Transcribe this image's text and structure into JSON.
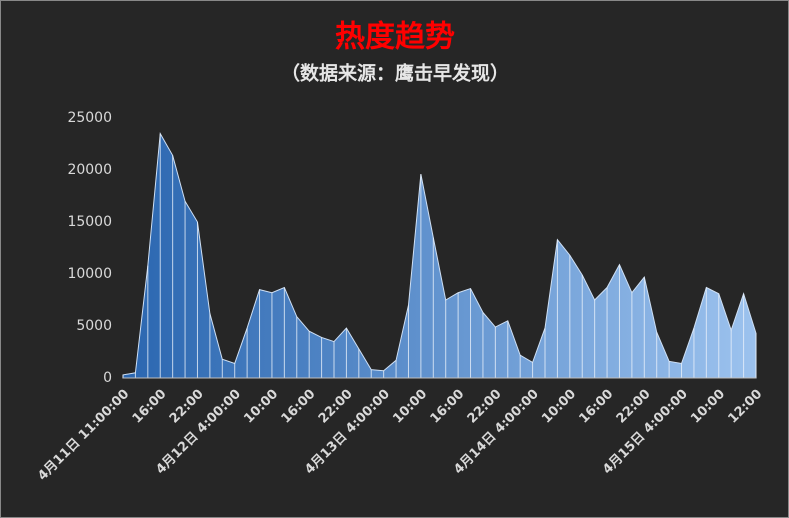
{
  "chart_data": {
    "type": "area",
    "title": "热度趋势",
    "subtitle": "（数据来源：鹰击早发现）",
    "categories": [
      "4月11日 11:00:00",
      null,
      null,
      "16:00",
      null,
      null,
      "22:00",
      null,
      null,
      "4月12日 4:00:00",
      null,
      null,
      "10:00",
      null,
      null,
      "16:00",
      null,
      null,
      "22:00",
      null,
      null,
      "4月13日 4:00:00",
      null,
      null,
      "10:00",
      null,
      null,
      "16:00",
      null,
      null,
      "22:00",
      null,
      null,
      "4月14日 4:00:00",
      null,
      null,
      "10:00",
      null,
      null,
      "16:00",
      null,
      null,
      "22:00",
      null,
      null,
      "4月15日 4:00:00",
      null,
      null,
      "10:00",
      null,
      null,
      "12:00"
    ],
    "values": [
      300,
      500,
      10800,
      23500,
      21400,
      17000,
      15000,
      6200,
      1800,
      1400,
      4800,
      8500,
      8200,
      8700,
      5900,
      4500,
      3900,
      3500,
      4800,
      2800,
      800,
      700,
      1700,
      7000,
      19600,
      13500,
      7500,
      8200,
      8600,
      6300,
      4900,
      5500,
      2200,
      1500,
      4800,
      13300,
      11800,
      9900,
      7500,
      8700,
      10900,
      8200,
      9700,
      4400,
      1600,
      1400,
      4800,
      8700,
      8100,
      4600,
      8100,
      4300
    ],
    "colors": [
      "#2a66b0",
      "#9cc2ee"
    ],
    "ylim": [
      0,
      25000
    ],
    "yticks": [
      0,
      5000,
      10000,
      15000,
      20000,
      25000
    ],
    "grid": false
  }
}
